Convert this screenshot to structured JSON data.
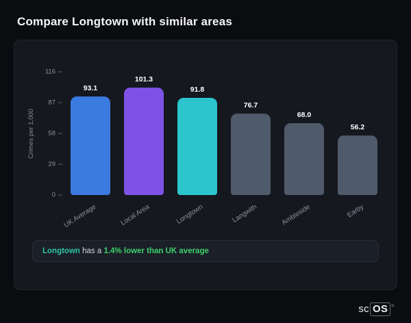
{
  "page": {
    "title": "Compare Longtown with similar areas"
  },
  "chart_data": {
    "type": "bar",
    "title": "Compare Longtown with similar areas",
    "xlabel": "",
    "ylabel": "Crimes per 1,000",
    "ylim": [
      0,
      116
    ],
    "yticks": [
      116,
      87,
      58,
      29,
      0
    ],
    "grid": false,
    "legend": "none",
    "categories": [
      "UK Average",
      "Local Area",
      "Longtown",
      "Langwith",
      "Ambleside",
      "Earby"
    ],
    "values": [
      93.1,
      101.3,
      91.8,
      76.7,
      68.0,
      56.2
    ],
    "value_labels": [
      "93.1",
      "101.3",
      "91.8",
      "76.7",
      "68.0",
      "56.2"
    ],
    "bar_colors": [
      "#3b7be0",
      "#7e52e6",
      "#2cc5cd",
      "#4f5a6a",
      "#4f5a6a",
      "#4f5a6a"
    ]
  },
  "footer": {
    "area_name": "Longtown",
    "connector": "has a",
    "stat_text": "1.4% lower than UK average"
  },
  "branding": {
    "prefix": "sc",
    "suffix": "OS",
    "registered": "®"
  },
  "colors": {
    "background": "#0b0c0f",
    "card": "#15181e",
    "accent_teal": "#2ec4a6",
    "accent_green": "#3ed06e"
  }
}
